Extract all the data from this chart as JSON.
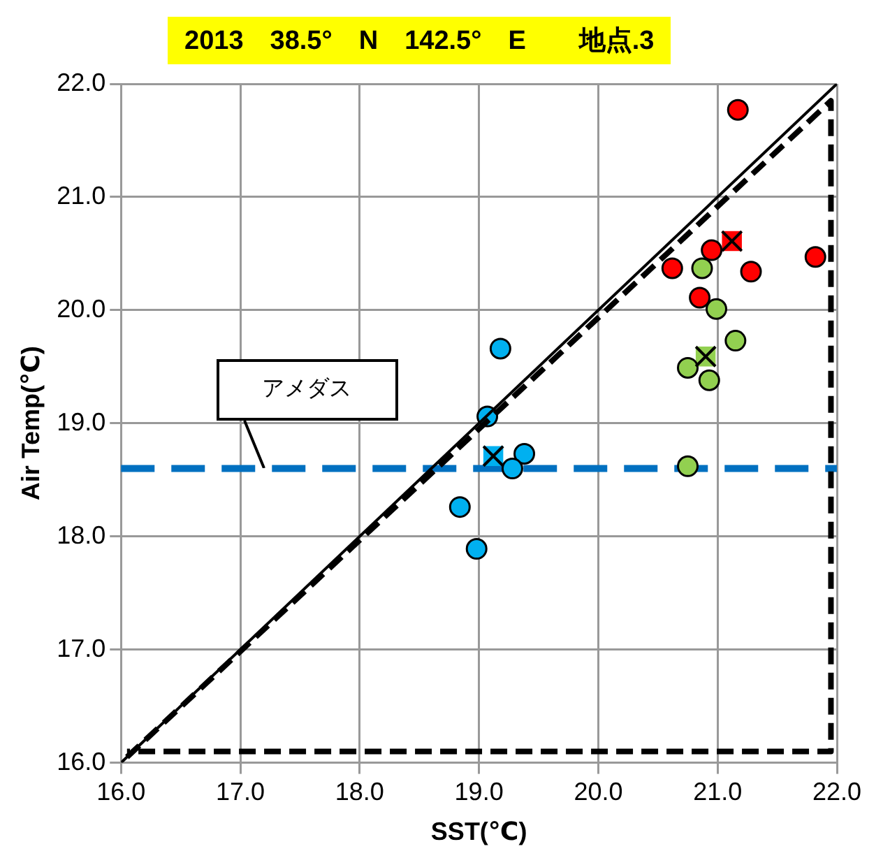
{
  "chart_data": {
    "type": "scatter",
    "title": "2013　38.5°　N　142.5°　E　　地点.3",
    "xlabel": "SST(℃)",
    "ylabel": "Air Temp(℃)",
    "xlim": [
      16,
      22
    ],
    "ylim": [
      16,
      22
    ],
    "xticks": [
      {
        "value": 16,
        "label": "16.0"
      },
      {
        "value": 17,
        "label": "17.0"
      },
      {
        "value": 18,
        "label": "18.0"
      },
      {
        "value": 19,
        "label": "19.0"
      },
      {
        "value": 20,
        "label": "20.0"
      },
      {
        "value": 21,
        "label": "21.0"
      },
      {
        "value": 22,
        "label": "22.0"
      }
    ],
    "yticks": [
      {
        "value": 16,
        "label": "16.0"
      },
      {
        "value": 17,
        "label": "17.0"
      },
      {
        "value": 18,
        "label": "18.0"
      },
      {
        "value": 19,
        "label": "19.0"
      },
      {
        "value": 20,
        "label": "20.0"
      },
      {
        "value": 21,
        "label": "21.0"
      },
      {
        "value": 22,
        "label": "22.0"
      }
    ],
    "grid": true,
    "legend": false,
    "marker": "circle",
    "series": [
      {
        "type": "line",
        "color": "#000000",
        "x": [
          16,
          22
        ],
        "values": [
          16,
          22
        ],
        "line_style": "solid",
        "marker": "none"
      },
      {
        "type": "line",
        "color": "#000000",
        "x": [
          16.05,
          21.95,
          21.95,
          16.05
        ],
        "values": [
          16.05,
          21.85,
          16.1,
          16.1
        ],
        "line_style": "dashed",
        "marker": "none"
      },
      {
        "color": "#00b0f0",
        "x": [
          19.18,
          19.07,
          19.38,
          19.28,
          18.84,
          18.98
        ],
        "values": [
          19.66,
          19.06,
          18.73,
          18.6,
          18.26,
          17.89
        ]
      },
      {
        "color": "#ff0000",
        "x": [
          21.17,
          20.95,
          20.62,
          21.82,
          21.28,
          20.85
        ],
        "values": [
          21.77,
          20.53,
          20.37,
          20.47,
          20.34,
          20.11
        ]
      },
      {
        "color": "#92d050",
        "x": [
          20.87,
          20.99,
          21.15,
          20.75,
          20.93,
          20.75
        ],
        "values": [
          20.37,
          20.01,
          19.73,
          19.49,
          19.38,
          18.62
        ]
      },
      {
        "color": "#00b0f0",
        "x": [
          19.12
        ],
        "values": [
          18.71
        ],
        "marker": "square"
      },
      {
        "color": "#ff0000",
        "x": [
          21.12
        ],
        "values": [
          20.61
        ],
        "marker": "square"
      },
      {
        "color": "#92d050",
        "x": [
          20.9
        ],
        "values": [
          19.59
        ],
        "marker": "square"
      }
    ],
    "ref_lines": [
      {
        "axis": "y",
        "value": 18.6,
        "label": "アメダス",
        "color": "#0070c0",
        "line_style": "dashed"
      }
    ]
  }
}
